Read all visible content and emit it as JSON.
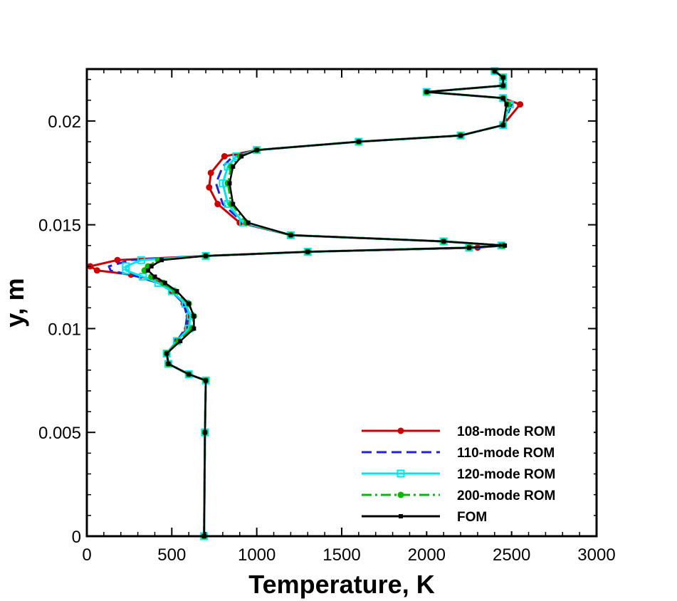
{
  "chart_data": {
    "type": "line",
    "xlabel": "Temperature, K",
    "ylabel": "y, m",
    "xlim": [
      0,
      3000
    ],
    "ylim": [
      0,
      0.0225
    ],
    "x_ticks": [
      "0",
      "500",
      "1000",
      "1500",
      "2000",
      "2500",
      "3000"
    ],
    "y_ticks": [
      "0",
      "0.005",
      "0.01",
      "0.015",
      "0.02"
    ],
    "legend_position": "bottom-right",
    "grid": false,
    "series": [
      {
        "name": "108-mode ROM",
        "color": "#cc0000",
        "line": "solid",
        "marker": "circle-filled",
        "points": [
          [
            690,
            0
          ],
          [
            695,
            0.005
          ],
          [
            700,
            0.0075
          ],
          [
            600,
            0.0078
          ],
          [
            480,
            0.0083
          ],
          [
            470,
            0.0088
          ],
          [
            530,
            0.0094
          ],
          [
            590,
            0.01
          ],
          [
            600,
            0.0106
          ],
          [
            570,
            0.0112
          ],
          [
            500,
            0.0118
          ],
          [
            420,
            0.0123
          ],
          [
            260,
            0.0126
          ],
          [
            60,
            0.0128
          ],
          [
            20,
            0.013
          ],
          [
            180,
            0.0133
          ],
          [
            700,
            0.0135
          ],
          [
            1300,
            0.0137
          ],
          [
            2300,
            0.0139
          ],
          [
            2440,
            0.014
          ],
          [
            2100,
            0.0142
          ],
          [
            1200,
            0.0145
          ],
          [
            900,
            0.0151
          ],
          [
            770,
            0.016
          ],
          [
            720,
            0.0168
          ],
          [
            730,
            0.0175
          ],
          [
            810,
            0.0183
          ],
          [
            1000,
            0.0186
          ],
          [
            1600,
            0.019
          ],
          [
            2200,
            0.0193
          ],
          [
            2450,
            0.0198
          ],
          [
            2550,
            0.0208
          ],
          [
            2450,
            0.0211
          ],
          [
            2000,
            0.0214
          ],
          [
            2450,
            0.0217
          ],
          [
            2450,
            0.0221
          ],
          [
            2400,
            0.0224
          ]
        ]
      },
      {
        "name": "110-mode ROM",
        "color": "#2222dd",
        "line": "dashed",
        "marker": "none",
        "points": [
          [
            690,
            0
          ],
          [
            695,
            0.005
          ],
          [
            700,
            0.0075
          ],
          [
            600,
            0.0078
          ],
          [
            480,
            0.0083
          ],
          [
            470,
            0.0088
          ],
          [
            530,
            0.0094
          ],
          [
            580,
            0.01
          ],
          [
            590,
            0.0106
          ],
          [
            570,
            0.0112
          ],
          [
            500,
            0.0118
          ],
          [
            420,
            0.0122
          ],
          [
            300,
            0.0125
          ],
          [
            140,
            0.0128
          ],
          [
            130,
            0.013
          ],
          [
            260,
            0.0133
          ],
          [
            700,
            0.0135
          ],
          [
            1300,
            0.0137
          ],
          [
            2300,
            0.0139
          ],
          [
            2450,
            0.014
          ],
          [
            2100,
            0.0142
          ],
          [
            1200,
            0.0145
          ],
          [
            920,
            0.0151
          ],
          [
            800,
            0.016
          ],
          [
            760,
            0.017
          ],
          [
            800,
            0.0178
          ],
          [
            860,
            0.0183
          ],
          [
            1000,
            0.0186
          ],
          [
            1600,
            0.019
          ],
          [
            2200,
            0.0193
          ],
          [
            2450,
            0.0198
          ],
          [
            2500,
            0.0208
          ],
          [
            2450,
            0.0211
          ],
          [
            2000,
            0.0214
          ],
          [
            2450,
            0.0217
          ],
          [
            2450,
            0.0221
          ],
          [
            2400,
            0.0224
          ]
        ]
      },
      {
        "name": "120-mode ROM",
        "color": "#00e5ee",
        "line": "solid",
        "marker": "square-open",
        "points": [
          [
            690,
            0
          ],
          [
            695,
            0.005
          ],
          [
            700,
            0.0075
          ],
          [
            600,
            0.0078
          ],
          [
            480,
            0.0083
          ],
          [
            470,
            0.0088
          ],
          [
            530,
            0.0094
          ],
          [
            600,
            0.01
          ],
          [
            610,
            0.0106
          ],
          [
            580,
            0.0112
          ],
          [
            500,
            0.0118
          ],
          [
            420,
            0.0122
          ],
          [
            330,
            0.0125
          ],
          [
            230,
            0.0128
          ],
          [
            230,
            0.013
          ],
          [
            320,
            0.0133
          ],
          [
            700,
            0.0135
          ],
          [
            1300,
            0.0137
          ],
          [
            2250,
            0.0139
          ],
          [
            2440,
            0.014
          ],
          [
            2100,
            0.0142
          ],
          [
            1200,
            0.0145
          ],
          [
            920,
            0.0151
          ],
          [
            830,
            0.016
          ],
          [
            800,
            0.017
          ],
          [
            830,
            0.0178
          ],
          [
            880,
            0.0183
          ],
          [
            1000,
            0.0186
          ],
          [
            1600,
            0.019
          ],
          [
            2200,
            0.0193
          ],
          [
            2450,
            0.0198
          ],
          [
            2490,
            0.0208
          ],
          [
            2450,
            0.0211
          ],
          [
            2000,
            0.0214
          ],
          [
            2450,
            0.0217
          ],
          [
            2450,
            0.0221
          ],
          [
            2400,
            0.0224
          ]
        ]
      },
      {
        "name": "200-mode ROM",
        "color": "#00bb00",
        "line": "dashdot",
        "marker": "circle-filled",
        "points": [
          [
            690,
            0
          ],
          [
            695,
            0.005
          ],
          [
            700,
            0.0075
          ],
          [
            600,
            0.0078
          ],
          [
            480,
            0.0083
          ],
          [
            470,
            0.0088
          ],
          [
            540,
            0.0094
          ],
          [
            620,
            0.01
          ],
          [
            630,
            0.0106
          ],
          [
            600,
            0.0112
          ],
          [
            520,
            0.0118
          ],
          [
            450,
            0.0122
          ],
          [
            380,
            0.0125
          ],
          [
            340,
            0.0128
          ],
          [
            360,
            0.013
          ],
          [
            420,
            0.0133
          ],
          [
            700,
            0.0135
          ],
          [
            1300,
            0.0137
          ],
          [
            2250,
            0.0139
          ],
          [
            2450,
            0.014
          ],
          [
            2100,
            0.0142
          ],
          [
            1200,
            0.0145
          ],
          [
            940,
            0.0151
          ],
          [
            850,
            0.016
          ],
          [
            830,
            0.017
          ],
          [
            850,
            0.0178
          ],
          [
            900,
            0.0183
          ],
          [
            1000,
            0.0186
          ],
          [
            1600,
            0.019
          ],
          [
            2200,
            0.0193
          ],
          [
            2450,
            0.0198
          ],
          [
            2480,
            0.0208
          ],
          [
            2450,
            0.0211
          ],
          [
            2000,
            0.0214
          ],
          [
            2450,
            0.0217
          ],
          [
            2450,
            0.0221
          ],
          [
            2400,
            0.0224
          ]
        ]
      },
      {
        "name": "FOM",
        "color": "#000000",
        "line": "solid",
        "marker": "square-filled",
        "points": [
          [
            690,
            0
          ],
          [
            695,
            0.005
          ],
          [
            700,
            0.0075
          ],
          [
            600,
            0.0078
          ],
          [
            480,
            0.0083
          ],
          [
            470,
            0.0088
          ],
          [
            550,
            0.0094
          ],
          [
            630,
            0.01
          ],
          [
            630,
            0.0106
          ],
          [
            600,
            0.0112
          ],
          [
            530,
            0.0118
          ],
          [
            460,
            0.0122
          ],
          [
            400,
            0.0125
          ],
          [
            360,
            0.0128
          ],
          [
            380,
            0.013
          ],
          [
            440,
            0.0133
          ],
          [
            700,
            0.0135
          ],
          [
            1300,
            0.0137
          ],
          [
            2250,
            0.0139
          ],
          [
            2460,
            0.014
          ],
          [
            2100,
            0.0142
          ],
          [
            1200,
            0.0145
          ],
          [
            950,
            0.0151
          ],
          [
            860,
            0.016
          ],
          [
            840,
            0.017
          ],
          [
            860,
            0.0178
          ],
          [
            910,
            0.0183
          ],
          [
            1000,
            0.0186
          ],
          [
            1600,
            0.019
          ],
          [
            2200,
            0.0193
          ],
          [
            2450,
            0.0198
          ],
          [
            2470,
            0.0208
          ],
          [
            2450,
            0.0211
          ],
          [
            2000,
            0.0214
          ],
          [
            2450,
            0.0217
          ],
          [
            2450,
            0.0221
          ],
          [
            2400,
            0.0224
          ]
        ]
      }
    ]
  }
}
